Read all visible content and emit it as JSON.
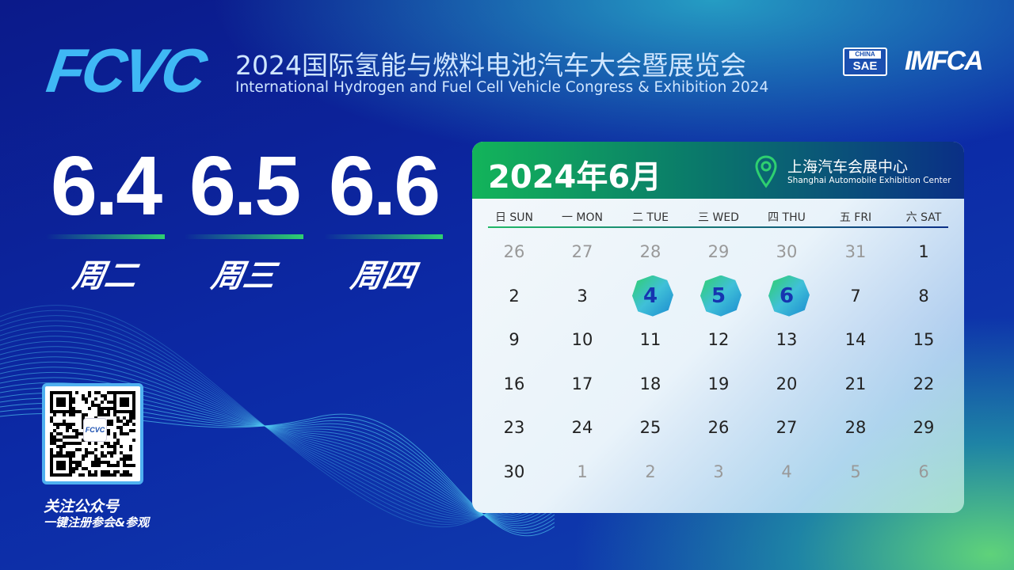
{
  "header": {
    "logo": "FCVC",
    "title_cn": "2024国际氢能与燃料电池汽车大会暨展览会",
    "title_en": "International Hydrogen and Fuel Cell Vehicle Congress & Exhibition 2024",
    "partner_logos": [
      "CHINA SAE",
      "IMFCA"
    ]
  },
  "dates": [
    {
      "date": "6.4",
      "weekday": "周二"
    },
    {
      "date": "6.5",
      "weekday": "周三"
    },
    {
      "date": "6.6",
      "weekday": "周四"
    }
  ],
  "qr": {
    "label": "关注公众号",
    "sublabel": "一键注册参会&参观",
    "center_logo": "FCVC"
  },
  "calendar": {
    "month": "2024年6月",
    "venue_cn": "上海汽车会展中心",
    "venue_en": "Shanghai Automobile Exhibition Center",
    "location_icon": "map-pin-icon",
    "weekdays": [
      "日 SUN",
      "一 MON",
      "二 TUE",
      "三 WED",
      "四 THU",
      "五 FRI",
      "六 SAT"
    ],
    "weeks": [
      [
        "26",
        "27",
        "28",
        "29",
        "30",
        "31",
        "1"
      ],
      [
        "2",
        "3",
        "4",
        "5",
        "6",
        "7",
        "8"
      ],
      [
        "9",
        "10",
        "11",
        "12",
        "13",
        "14",
        "15"
      ],
      [
        "16",
        "17",
        "18",
        "19",
        "20",
        "21",
        "22"
      ],
      [
        "23",
        "24",
        "25",
        "26",
        "27",
        "28",
        "29"
      ],
      [
        "30",
        "1",
        "2",
        "3",
        "4",
        "5",
        "6"
      ]
    ],
    "highlighted": [
      "4",
      "5",
      "6"
    ]
  },
  "colors": {
    "accent_green": "#2ed070",
    "navy": "#0a2f86",
    "highlight_text": "#1635b0"
  }
}
